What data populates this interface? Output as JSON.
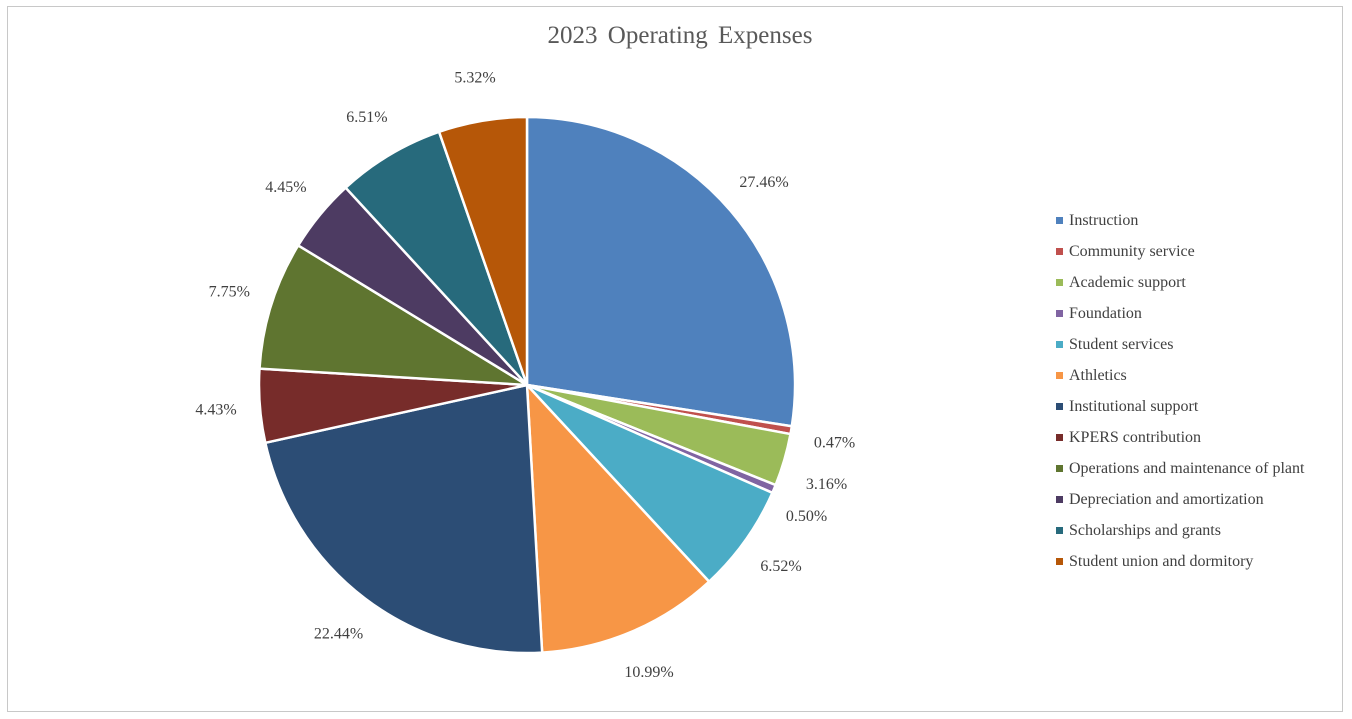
{
  "chart_data": {
    "type": "pie",
    "title": "2023 Operating Expenses",
    "legend_position": "right",
    "slices": [
      {
        "name": "Instruction",
        "value": 27.46,
        "label": "27.46%",
        "color": "#4f81bd"
      },
      {
        "name": "Community service",
        "value": 0.47,
        "label": "0.47%",
        "color": "#c0504d"
      },
      {
        "name": "Academic support",
        "value": 3.16,
        "label": "3.16%",
        "color": "#9bbb59"
      },
      {
        "name": "Foundation",
        "value": 0.5,
        "label": "0.50%",
        "color": "#8064a2"
      },
      {
        "name": "Student services",
        "value": 6.52,
        "label": "6.52%",
        "color": "#4bacc6"
      },
      {
        "name": "Athletics",
        "value": 10.99,
        "label": "10.99%",
        "color": "#f79646"
      },
      {
        "name": "Institutional support",
        "value": 22.44,
        "label": "22.44%",
        "color": "#2c4d75"
      },
      {
        "name": "KPERS contribution",
        "value": 4.43,
        "label": "4.43%",
        "color": "#772c2a"
      },
      {
        "name": "Operations and maintenance of plant",
        "value": 7.75,
        "label": "7.75%",
        "color": "#5f7530"
      },
      {
        "name": "Depreciation and amortization",
        "value": 4.45,
        "label": "4.45%",
        "color": "#4d3b62"
      },
      {
        "name": "Scholarships and grants",
        "value": 6.51,
        "label": "6.51%",
        "color": "#276a7c"
      },
      {
        "name": "Student union and dormitory",
        "value": 5.32,
        "label": "5.32%",
        "color": "#b65708"
      }
    ]
  }
}
